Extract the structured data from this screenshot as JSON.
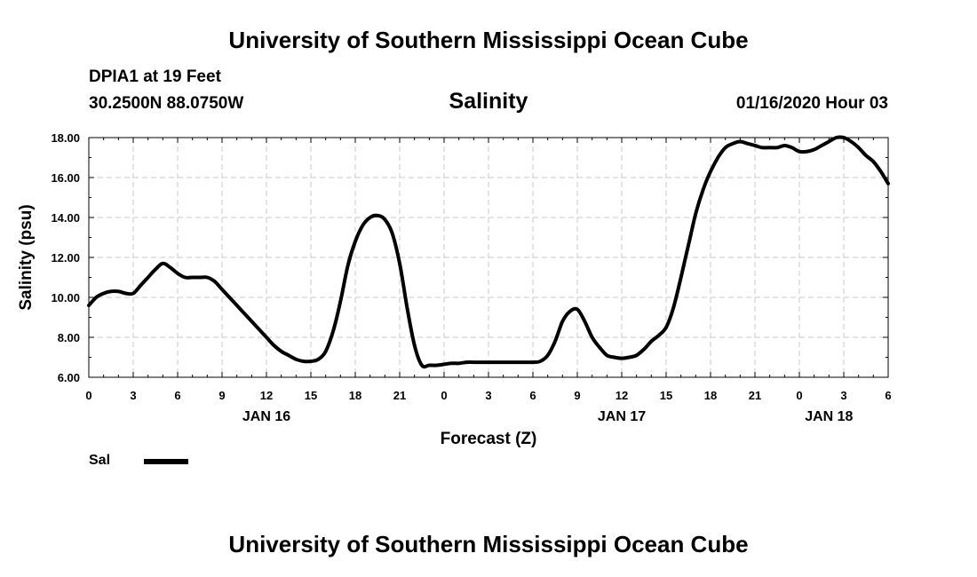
{
  "header": {
    "title": "University of Southern Mississippi Ocean Cube",
    "station": "DPIA1 at 19 Feet",
    "coordinates": "30.2500N 88.0750W",
    "run_time": "01/16/2020 Hour 03"
  },
  "footer": {
    "title": "University of Southern Mississippi Ocean Cube"
  },
  "chart_data": {
    "type": "line",
    "title": "Salinity",
    "xlabel": "Forecast (Z)",
    "ylabel": "Salinity (psu)",
    "xlim": [
      0,
      54
    ],
    "ylim": [
      6,
      18
    ],
    "grid": true,
    "x_tick_labels": [
      "0",
      "3",
      "6",
      "9",
      "12",
      "15",
      "18",
      "21",
      "0",
      "3",
      "6",
      "9",
      "12",
      "15",
      "18",
      "21",
      "0",
      "3",
      "6"
    ],
    "date_labels": [
      {
        "label": "JAN 16",
        "hour": 12
      },
      {
        "label": "JAN 17",
        "hour": 36
      },
      {
        "label": "JAN 18",
        "hour": 50
      }
    ],
    "y_tick_labels": [
      "6.00",
      "8.00",
      "10.00",
      "12.00",
      "14.00",
      "16.00",
      "18.00"
    ],
    "legend": {
      "position": "bottom-left"
    },
    "series": [
      {
        "name": "Sal",
        "color": "#000000",
        "x": [
          0,
          0.5,
          1,
          1.5,
          2,
          2.5,
          3,
          3.5,
          4,
          4.5,
          5,
          5.5,
          6,
          6.5,
          7,
          7.5,
          8,
          8.5,
          9,
          9.5,
          10,
          10.5,
          11,
          11.5,
          12,
          12.5,
          13,
          13.5,
          14,
          14.5,
          15,
          15.5,
          16,
          16.5,
          17,
          17.5,
          18,
          18.5,
          19,
          19.5,
          20,
          20.5,
          21,
          21.5,
          22,
          22.5,
          23,
          23.5,
          24,
          24.5,
          25,
          25.5,
          26,
          26.5,
          27,
          27.5,
          28,
          28.5,
          29,
          29.5,
          30,
          30.5,
          31,
          31.5,
          32,
          32.5,
          33,
          33.5,
          34,
          34.5,
          35,
          35.5,
          36,
          36.5,
          37,
          37.5,
          38,
          38.5,
          39,
          39.5,
          40,
          40.5,
          41,
          41.5,
          42,
          42.5,
          43,
          43.5,
          44,
          44.5,
          45,
          45.5,
          46,
          46.5,
          47,
          47.5,
          48,
          48.5,
          49,
          49.5,
          50,
          50.5,
          51,
          51.5,
          52,
          52.5,
          53,
          53.5,
          54
        ],
        "values": [
          9.6,
          10.0,
          10.2,
          10.3,
          10.3,
          10.2,
          10.2,
          10.6,
          11.0,
          11.4,
          11.7,
          11.5,
          11.2,
          11.0,
          11.0,
          11.0,
          11.0,
          10.8,
          10.4,
          10.0,
          9.6,
          9.2,
          8.8,
          8.4,
          8.0,
          7.6,
          7.3,
          7.1,
          6.9,
          6.8,
          6.8,
          6.9,
          7.3,
          8.3,
          9.8,
          11.6,
          12.8,
          13.6,
          14.0,
          14.1,
          13.9,
          13.2,
          11.7,
          9.5,
          7.6,
          6.6,
          6.6,
          6.6,
          6.65,
          6.7,
          6.7,
          6.75,
          6.75,
          6.75,
          6.75,
          6.75,
          6.75,
          6.75,
          6.75,
          6.75,
          6.75,
          6.8,
          7.1,
          7.8,
          8.8,
          9.3,
          9.4,
          8.8,
          8.0,
          7.5,
          7.1,
          7.0,
          6.95,
          7.0,
          7.1,
          7.4,
          7.8,
          8.1,
          8.5,
          9.5,
          11.0,
          12.6,
          14.2,
          15.4,
          16.3,
          17.0,
          17.5,
          17.7,
          17.8,
          17.7,
          17.6,
          17.5,
          17.5,
          17.5,
          17.6,
          17.5,
          17.3,
          17.3,
          17.4,
          17.6,
          17.8,
          18.0,
          18.0,
          17.8,
          17.5,
          17.1,
          16.8,
          16.3,
          15.7
        ]
      }
    ]
  }
}
